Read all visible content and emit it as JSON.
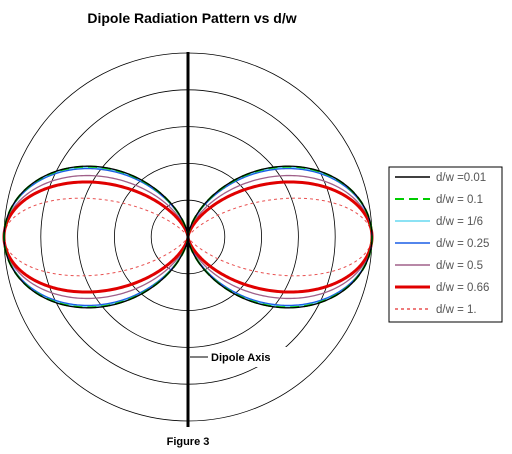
{
  "title": "Dipole Radiation Pattern vs d/w",
  "caption": "Figure 3",
  "annotation": "Dipole Axis",
  "chart_data": {
    "type": "line",
    "subtype": "polar",
    "title": "Dipole Radiation Pattern vs d/w",
    "polar_grid": {
      "rings": [
        0.2,
        0.4,
        0.6,
        0.8,
        1.0
      ],
      "radial_range": [
        0,
        1
      ]
    },
    "axis": {
      "label": "Dipole Axis",
      "orientation": "vertical"
    },
    "legend_placement": "right",
    "series": [
      {
        "name": "d/w =0.01",
        "dw": 0.01,
        "color": "#000000",
        "style": "solid"
      },
      {
        "name": "d/w = 0.1",
        "dw": 0.1,
        "color": "#00cc00",
        "style": "dashed"
      },
      {
        "name": "d/w = 1/6",
        "dw": 0.1667,
        "color": "#66d9f0",
        "style": "solid"
      },
      {
        "name": "d/w = 0.25",
        "dw": 0.25,
        "color": "#1a5ee6",
        "style": "solid"
      },
      {
        "name": "d/w = 0.5",
        "dw": 0.5,
        "color": "#a0608a",
        "style": "solid"
      },
      {
        "name": "d/w = 0.66",
        "dw": 0.66,
        "color": "#e00000",
        "style": "solid-bold"
      },
      {
        "name": "d/w = 1.",
        "dw": 1.0,
        "color": "#e85050",
        "style": "dotted"
      }
    ]
  }
}
